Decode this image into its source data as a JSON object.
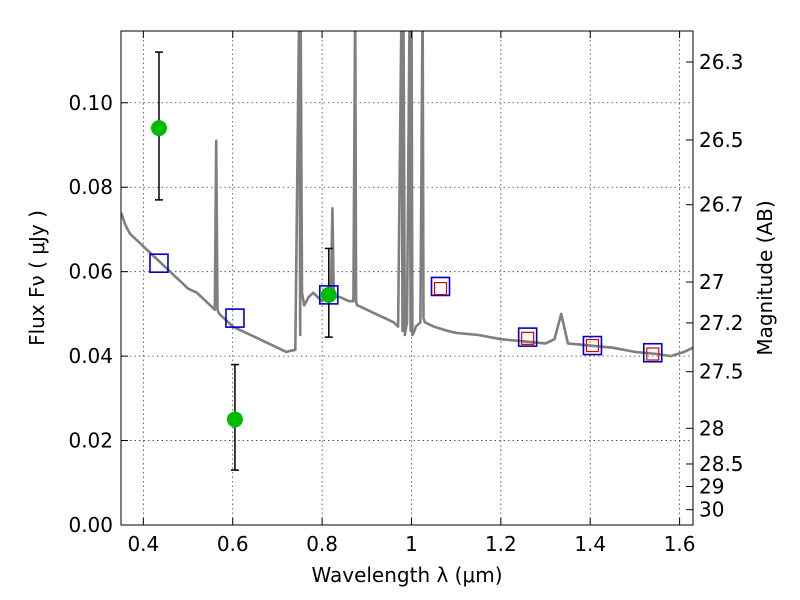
{
  "chart_data": {
    "type": "scatter",
    "title": "",
    "xlabel": "Wavelength  λ (μm)",
    "ylabel": "Flux  Fν  ( μJy )",
    "y2label": "Magnitude (AB)",
    "xlim": [
      0.35,
      1.63
    ],
    "ylim": [
      0.0,
      0.117
    ],
    "grid": true,
    "x_ticks": [
      "0.4",
      "0.6",
      "0.8",
      "1",
      "1.2",
      "1.4",
      "1.6"
    ],
    "y_ticks": [
      "0.00",
      "0.02",
      "0.04",
      "0.06",
      "0.08",
      "0.10"
    ],
    "y2_ticks": [
      "26.3",
      "26.5",
      "26.7",
      "27",
      "27.2",
      "27.5",
      "28",
      "28.5",
      "29",
      "30"
    ],
    "colors": {
      "spectrum": "#7f7f7f",
      "observed": "#00bb00",
      "model_bands": "#0000cc",
      "model_broad": "#dd0000"
    },
    "series": [
      {
        "kind": "line",
        "x": [
          0.35,
          0.36,
          0.37,
          0.38,
          0.39,
          0.4,
          0.41,
          0.42,
          0.43,
          0.44,
          0.45,
          0.46,
          0.47,
          0.48,
          0.49,
          0.5,
          0.51,
          0.52,
          0.53,
          0.54,
          0.55,
          0.56,
          0.563,
          0.566,
          0.57,
          0.58,
          0.59,
          0.6,
          0.62,
          0.64,
          0.66,
          0.68,
          0.7,
          0.72,
          0.74,
          0.749,
          0.751,
          0.752,
          0.755,
          0.76,
          0.77,
          0.78,
          0.79,
          0.8,
          0.81,
          0.82,
          0.823,
          0.826,
          0.83,
          0.84,
          0.85,
          0.86,
          0.87,
          0.874,
          0.876,
          0.878,
          0.88,
          0.9,
          0.92,
          0.94,
          0.96,
          0.97,
          0.978,
          0.98,
          0.982,
          0.985,
          0.99,
          0.996,
          0.998,
          1.0,
          1.002,
          1.005,
          1.01,
          1.02,
          1.025,
          1.027,
          1.03,
          1.05,
          1.08,
          1.1,
          1.15,
          1.2,
          1.25,
          1.3,
          1.32,
          1.335,
          1.35,
          1.4,
          1.45,
          1.5,
          1.55,
          1.58,
          1.61,
          1.63
        ],
        "y": [
          0.074,
          0.071,
          0.069,
          0.068,
          0.067,
          0.066,
          0.065,
          0.064,
          0.063,
          0.062,
          0.061,
          0.06,
          0.059,
          0.058,
          0.057,
          0.056,
          0.0555,
          0.055,
          0.054,
          0.053,
          0.052,
          0.051,
          0.091,
          0.051,
          0.05,
          0.049,
          0.048,
          0.047,
          0.046,
          0.045,
          0.044,
          0.043,
          0.042,
          0.041,
          0.0415,
          0.125,
          0.045,
          0.125,
          0.055,
          0.052,
          0.054,
          0.055,
          0.054,
          0.053,
          0.0545,
          0.055,
          0.075,
          0.055,
          0.054,
          0.054,
          0.0535,
          0.053,
          0.053,
          0.125,
          0.053,
          0.052,
          0.052,
          0.051,
          0.05,
          0.049,
          0.048,
          0.047,
          0.125,
          0.046,
          0.125,
          0.045,
          0.048,
          0.125,
          0.046,
          0.125,
          0.045,
          0.0455,
          0.047,
          0.048,
          0.125,
          0.049,
          0.048,
          0.047,
          0.046,
          0.0455,
          0.045,
          0.044,
          0.0435,
          0.043,
          0.044,
          0.05,
          0.043,
          0.0425,
          0.042,
          0.041,
          0.0405,
          0.04,
          0.041,
          0.042
        ]
      },
      {
        "kind": "errorbar",
        "x": [
          0.435,
          0.605,
          0.815
        ],
        "y": [
          0.094,
          0.025,
          0.0545
        ],
        "yerr_low": [
          0.017,
          0.012,
          0.01
        ],
        "yerr_high": [
          0.018,
          0.013,
          0.011
        ]
      },
      {
        "kind": "square_blue",
        "x": [
          0.435,
          0.605,
          0.815,
          1.065,
          1.26,
          1.405,
          1.54
        ],
        "y": [
          0.062,
          0.049,
          0.0545,
          0.0565,
          0.0445,
          0.0425,
          0.0408
        ]
      },
      {
        "kind": "square_red",
        "x": [
          1.065,
          1.26,
          1.405,
          1.54
        ],
        "y": [
          0.056,
          0.0442,
          0.0425,
          0.0405
        ]
      }
    ]
  }
}
